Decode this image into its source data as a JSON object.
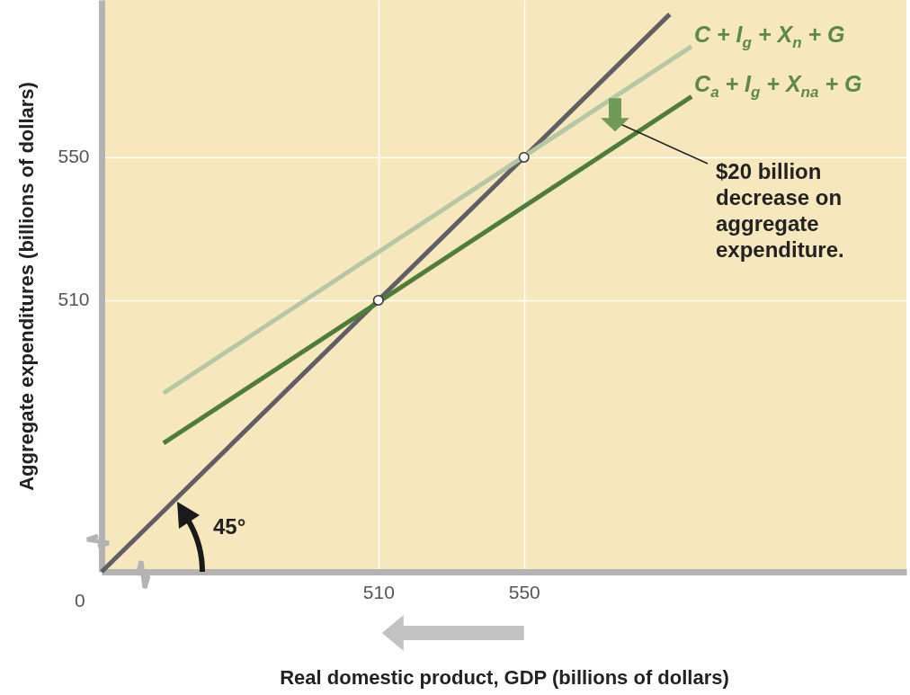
{
  "chart_data": {
    "type": "line",
    "xlabel": "Real domestic product, GDP (billions of dollars)",
    "ylabel": "Aggregate expenditures (billions of dollars)",
    "xlim": [
      434,
      655
    ],
    "ylim": [
      434,
      594
    ],
    "xticks": [
      510,
      550
    ],
    "yticks": [
      510,
      550
    ],
    "grid": true,
    "series": [
      {
        "color": "#605f66",
        "x": [
          434,
          590
        ],
        "values": [
          434,
          590
        ]
      },
      {
        "name": "C + I$_{g}$ + X$_{n}$ + G",
        "color": "#b5c8a4",
        "x": [
          451,
          596
        ],
        "values": [
          484,
          581
        ]
      },
      {
        "name": "C$_{a}$ + I$_{g}$ + X$_{na}$ + G",
        "color": "#4e7d3a",
        "x": [
          451,
          596
        ],
        "values": [
          470,
          567
        ]
      },
      {
        "type": "scatter",
        "marker": "circle",
        "color": "#ffffff",
        "x": [
          510,
          550
        ],
        "values": [
          510,
          550
        ]
      }
    ],
    "annotations": [
      "0",
      "45°",
      "$20 billion decrease on aggregate expenditure."
    ]
  }
}
